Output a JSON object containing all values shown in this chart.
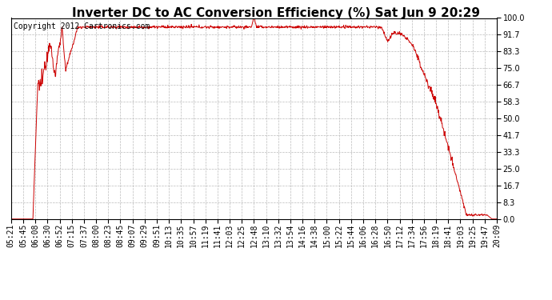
{
  "title": "Inverter DC to AC Conversion Efficiency (%) Sat Jun 9 20:29",
  "copyright_text": "Copyright 2012 Cartronics.com",
  "line_color": "#cc0000",
  "bg_color": "#ffffff",
  "plot_bg_color": "#ffffff",
  "grid_color": "#bbbbbb",
  "ylim": [
    0.0,
    100.0
  ],
  "yticks": [
    0.0,
    8.3,
    16.7,
    25.0,
    33.3,
    41.7,
    50.0,
    58.3,
    66.7,
    75.0,
    83.3,
    91.7,
    100.0
  ],
  "title_fontsize": 11,
  "copyright_fontsize": 7,
  "tick_fontsize": 7,
  "xtick_labels": [
    "05:21",
    "05:45",
    "06:08",
    "06:30",
    "06:52",
    "07:15",
    "07:37",
    "08:00",
    "08:23",
    "08:45",
    "09:07",
    "09:29",
    "09:51",
    "10:13",
    "10:35",
    "10:57",
    "11:19",
    "11:41",
    "12:03",
    "12:25",
    "12:48",
    "13:10",
    "13:32",
    "13:54",
    "14:16",
    "14:38",
    "15:00",
    "15:22",
    "15:44",
    "16:06",
    "16:28",
    "16:50",
    "17:12",
    "17:34",
    "17:56",
    "18:19",
    "18:41",
    "19:03",
    "19:25",
    "19:47",
    "20:09"
  ]
}
